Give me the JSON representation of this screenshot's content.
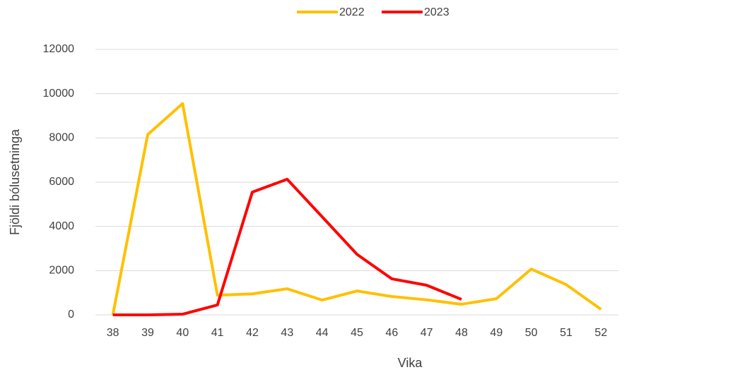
{
  "chart_data": {
    "type": "line",
    "categories": [
      "38",
      "39",
      "40",
      "41",
      "42",
      "43",
      "44",
      "45",
      "46",
      "47",
      "48",
      "49",
      "50",
      "51",
      "52"
    ],
    "series": [
      {
        "name": "2022",
        "color": "#ffc000",
        "values": [
          0,
          8150,
          9550,
          890,
          950,
          1180,
          670,
          1080,
          830,
          680,
          480,
          730,
          2070,
          1370,
          250
        ]
      },
      {
        "name": "2023",
        "color": "#ff0000",
        "values": [
          0,
          0,
          30,
          450,
          5550,
          6130,
          4440,
          2740,
          1630,
          1340,
          700,
          null,
          null,
          null,
          null
        ]
      }
    ],
    "ylim": [
      0,
      12000
    ],
    "yticks": [
      0,
      2000,
      4000,
      6000,
      8000,
      10000,
      12000
    ],
    "xlabel": "Vika",
    "ylabel": "Fjöldi bólusetninga",
    "grid": true,
    "legend": "top"
  }
}
